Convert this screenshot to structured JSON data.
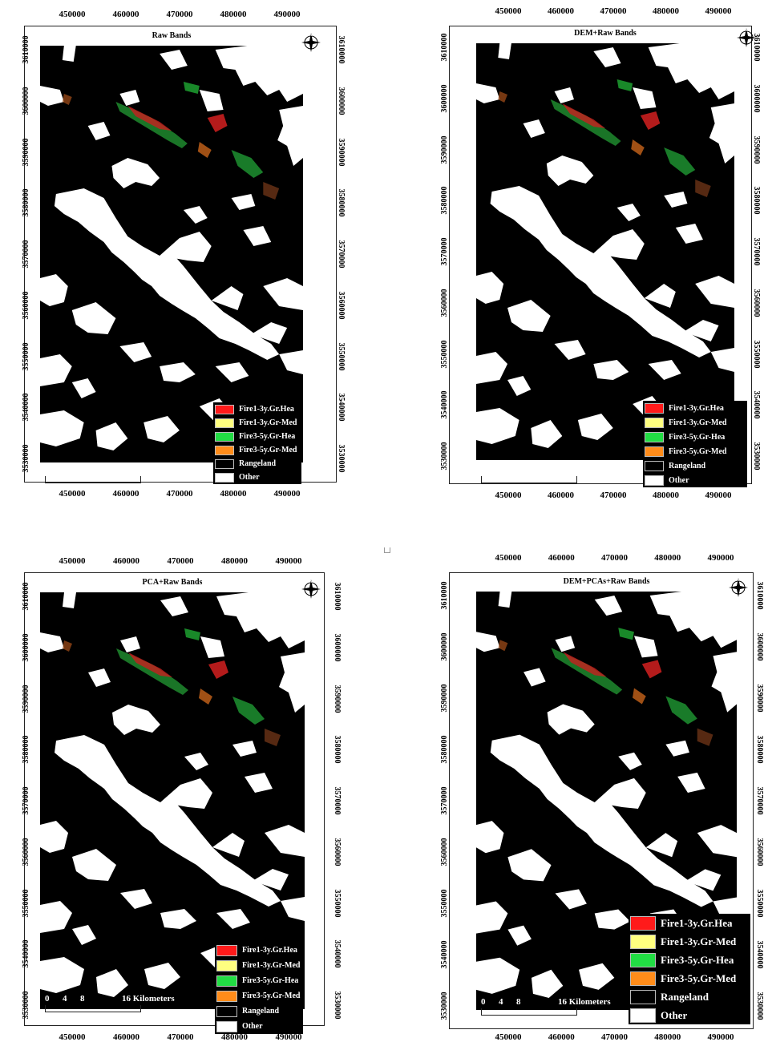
{
  "panels": [
    {
      "title": "Raw Bands",
      "legend_size": "small"
    },
    {
      "title": "DEM+Raw Bands",
      "legend_size": "small"
    },
    {
      "title": "PCA+Raw Bands",
      "legend_size": "small"
    },
    {
      "title": "DEM+PCAs+Raw Bands",
      "legend_size": "large"
    }
  ],
  "x_ticks": [
    "450000",
    "460000",
    "470000",
    "480000",
    "490000"
  ],
  "y_ticks": [
    "3610000",
    "3600000",
    "3590000",
    "3580000",
    "3570000",
    "3560000",
    "3550000",
    "3540000",
    "3530000"
  ],
  "scale": {
    "n0": "0",
    "n1": "4",
    "n2": "8",
    "n3": "16",
    "unit": "Kilometers"
  },
  "legend": [
    {
      "label": "Fire1-3y.Gr.Hea",
      "color": "#ff1a1a"
    },
    {
      "label": "Fire1-3y.Gr-Med",
      "color": "#ffff80"
    },
    {
      "label": "Fire3-5y.Gr-Hea",
      "color": "#22dd44"
    },
    {
      "label": "Fire3-5y.Gr-Med",
      "color": "#ff8c1a"
    },
    {
      "label": "Rangeland",
      "color": "#000000"
    },
    {
      "label": "Other",
      "color": "#ffffff"
    }
  ],
  "compass_letter": "N",
  "colors": {
    "map_background": "#000000",
    "other_class": "#ffffff"
  }
}
